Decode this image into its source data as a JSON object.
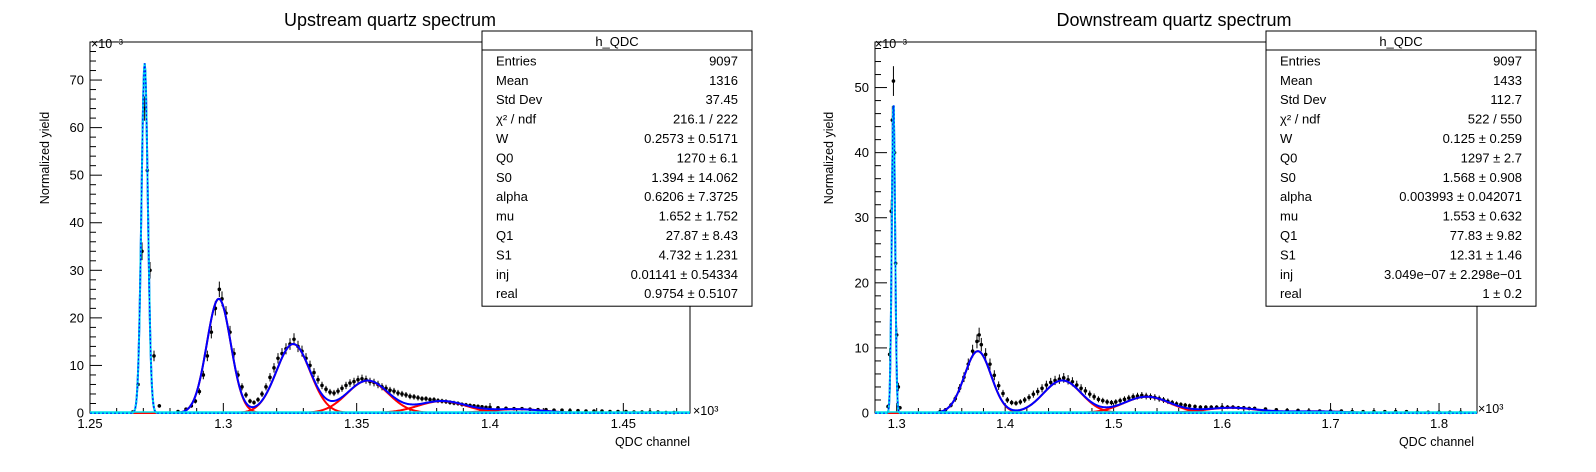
{
  "chart_data": [
    {
      "type": "scatter",
      "title": "Upstream quartz spectrum",
      "xlabel": "QDC channel",
      "ylabel": "Normalized yield",
      "x_multiplier": "×10³",
      "y_multiplier": "×10⁻³",
      "xlim": [
        1.25,
        1.475
      ],
      "ylim": [
        0,
        78
      ],
      "xticks": [
        "1.25",
        "1.3",
        "1.35",
        "1.4",
        "1.45"
      ],
      "yticks": [
        "0",
        "10",
        "20",
        "30",
        "40",
        "50",
        "60",
        "70"
      ],
      "grid": false,
      "legend": "none",
      "colors": {
        "total_fit": "#0000ff",
        "pe_components": "#ff0000",
        "pedestal": "#00e5ee",
        "data": "#000000"
      },
      "stats_box": {
        "title": "h_QDC",
        "rows": [
          {
            "label": "Entries",
            "value": "9097"
          },
          {
            "label": "Mean",
            "value": "1316"
          },
          {
            "label": "Std Dev",
            "value": "37.45"
          },
          {
            "label": "χ² / ndf",
            "value": "216.1 / 222"
          },
          {
            "label": "W",
            "value": "0.2573 ± 0.5171"
          },
          {
            "label": "Q0",
            "value": "1270 ± 6.1"
          },
          {
            "label": "S0",
            "value": "1.394 ± 14.062"
          },
          {
            "label": "alpha",
            "value": "0.6206 ± 7.3725"
          },
          {
            "label": "mu",
            "value": "1.652 ± 1.752"
          },
          {
            "label": "Q1",
            "value": "27.87 ± 8.43"
          },
          {
            "label": "S1",
            "value": "4.732 ± 1.231"
          },
          {
            "label": "inj",
            "value": "0.01141 ± 0.54334"
          },
          {
            "label": "real",
            "value": "0.9754 ± 0.5107"
          }
        ]
      },
      "peaks": [
        {
          "role": "pedestal",
          "center": 1.2705,
          "sigma": 0.0012,
          "height": 73.5
        },
        {
          "role": "pe",
          "center": 1.2983,
          "sigma": 0.0045,
          "height": 24.0
        },
        {
          "role": "pe",
          "center": 1.3262,
          "sigma": 0.0063,
          "height": 14.5
        },
        {
          "role": "pe",
          "center": 1.3541,
          "sigma": 0.0077,
          "height": 6.8
        },
        {
          "role": "pe",
          "center": 1.382,
          "sigma": 0.009,
          "height": 2.5
        },
        {
          "role": "pe",
          "center": 1.4099,
          "sigma": 0.01,
          "height": 0.8
        }
      ],
      "background": {
        "amplitude": 1.2,
        "decay": 0.045
      },
      "data_points": [
        [
          1.266,
          0.2
        ],
        [
          1.268,
          6
        ],
        [
          1.2695,
          34
        ],
        [
          1.2705,
          64
        ],
        [
          1.2715,
          51
        ],
        [
          1.2725,
          30
        ],
        [
          1.274,
          12
        ],
        [
          1.276,
          1.5
        ],
        [
          1.283,
          0.3
        ],
        [
          1.286,
          0.8
        ],
        [
          1.288,
          1.5
        ],
        [
          1.2895,
          2.5
        ],
        [
          1.291,
          4.5
        ],
        [
          1.2925,
          8
        ],
        [
          1.294,
          12
        ],
        [
          1.2955,
          17
        ],
        [
          1.297,
          22
        ],
        [
          1.2985,
          26
        ],
        [
          1.2995,
          24
        ],
        [
          1.301,
          21
        ],
        [
          1.3025,
          17
        ],
        [
          1.304,
          12.5
        ],
        [
          1.3055,
          8
        ],
        [
          1.307,
          5.5
        ],
        [
          1.3085,
          3.8
        ],
        [
          1.31,
          2.5
        ],
        [
          1.3115,
          2.2
        ],
        [
          1.313,
          2.8
        ],
        [
          1.3145,
          4
        ],
        [
          1.316,
          5.5
        ],
        [
          1.3175,
          7.5
        ],
        [
          1.319,
          9.5
        ],
        [
          1.3205,
          11.5
        ],
        [
          1.322,
          12.5
        ],
        [
          1.3235,
          13.5
        ],
        [
          1.325,
          14.5
        ],
        [
          1.3265,
          15.5
        ],
        [
          1.328,
          14
        ],
        [
          1.3295,
          13
        ],
        [
          1.331,
          11.5
        ],
        [
          1.3325,
          10
        ],
        [
          1.334,
          8.5
        ],
        [
          1.3355,
          7
        ],
        [
          1.337,
          5.8
        ],
        [
          1.3385,
          5
        ],
        [
          1.34,
          4.4
        ],
        [
          1.3415,
          4.2
        ],
        [
          1.343,
          4.6
        ],
        [
          1.3445,
          5.2
        ],
        [
          1.346,
          5.8
        ],
        [
          1.3475,
          6.3
        ],
        [
          1.349,
          6.6
        ],
        [
          1.3505,
          7.0
        ],
        [
          1.352,
          7.2
        ],
        [
          1.3535,
          7.0
        ],
        [
          1.355,
          6.6
        ],
        [
          1.3565,
          6.4
        ],
        [
          1.358,
          6.0
        ],
        [
          1.3595,
          5.5
        ],
        [
          1.361,
          5.2
        ],
        [
          1.3625,
          4.8
        ],
        [
          1.364,
          4.6
        ],
        [
          1.3655,
          4.2
        ],
        [
          1.367,
          4.0
        ],
        [
          1.3685,
          3.8
        ],
        [
          1.37,
          3.5
        ],
        [
          1.3715,
          3.4
        ],
        [
          1.373,
          3.2
        ],
        [
          1.3745,
          3.0
        ],
        [
          1.376,
          3.0
        ],
        [
          1.3775,
          2.8
        ],
        [
          1.379,
          2.8
        ],
        [
          1.3805,
          2.6
        ],
        [
          1.382,
          2.5
        ],
        [
          1.3835,
          2.4
        ],
        [
          1.385,
          2.2
        ],
        [
          1.3865,
          2.1
        ],
        [
          1.388,
          2.0
        ],
        [
          1.3895,
          1.8
        ],
        [
          1.391,
          1.7
        ],
        [
          1.3925,
          1.6
        ],
        [
          1.394,
          1.5
        ],
        [
          1.3955,
          1.4
        ],
        [
          1.397,
          1.3
        ],
        [
          1.3985,
          1.2
        ],
        [
          1.4,
          1.2
        ],
        [
          1.403,
          1.1
        ],
        [
          1.406,
          1.0
        ],
        [
          1.409,
          0.9
        ],
        [
          1.412,
          0.9
        ],
        [
          1.415,
          0.8
        ],
        [
          1.418,
          0.7
        ],
        [
          1.421,
          0.7
        ],
        [
          1.424,
          0.6
        ],
        [
          1.427,
          0.6
        ],
        [
          1.43,
          0.5
        ],
        [
          1.433,
          0.5
        ],
        [
          1.436,
          0.4
        ],
        [
          1.439,
          0.4
        ],
        [
          1.442,
          0.4
        ],
        [
          1.445,
          0.3
        ],
        [
          1.448,
          0.3
        ],
        [
          1.451,
          0.3
        ],
        [
          1.454,
          0.2
        ],
        [
          1.457,
          0.2
        ],
        [
          1.46,
          0.2
        ],
        [
          1.463,
          0.2
        ],
        [
          1.466,
          0.1
        ],
        [
          1.469,
          0.1
        ]
      ]
    },
    {
      "type": "scatter",
      "title": "Downstream quartz spectrum",
      "xlabel": "QDC channel",
      "ylabel": "Normalized yield",
      "x_multiplier": "×10³",
      "y_multiplier": "×10⁻³",
      "xlim": [
        1.28,
        1.835
      ],
      "ylim": [
        0,
        57
      ],
      "xticks": [
        "1.3",
        "1.4",
        "1.5",
        "1.6",
        "1.7",
        "1.8"
      ],
      "yticks": [
        "0",
        "10",
        "20",
        "30",
        "40",
        "50"
      ],
      "grid": false,
      "legend": "none",
      "colors": {
        "total_fit": "#0000ff",
        "pe_components": "#ff0000",
        "pedestal": "#00e5ee",
        "data": "#000000"
      },
      "stats_box": {
        "title": "h_QDC",
        "rows": [
          {
            "label": "Entries",
            "value": "9097"
          },
          {
            "label": "Mean",
            "value": "1433"
          },
          {
            "label": "Std Dev",
            "value": "112.7"
          },
          {
            "label": "χ² / ndf",
            "value": "522 / 550"
          },
          {
            "label": "W",
            "value": "0.125 ± 0.259"
          },
          {
            "label": "Q0",
            "value": "1297 ± 2.7"
          },
          {
            "label": "S0",
            "value": "1.568 ± 0.908"
          },
          {
            "label": "alpha",
            "value": "0.003993 ± 0.042071"
          },
          {
            "label": "mu",
            "value": "1.553 ± 0.632"
          },
          {
            "label": "Q1",
            "value": "77.83 ± 9.82"
          },
          {
            "label": "S1",
            "value": "12.31 ± 1.46"
          },
          {
            "label": "inj",
            "value": "3.049e−07 ± 2.298e−01"
          },
          {
            "label": "real",
            "value": "1 ± 0.2"
          }
        ]
      },
      "peaks": [
        {
          "role": "pedestal",
          "center": 1.297,
          "sigma": 0.0015,
          "height": 48.0
        },
        {
          "role": "pe",
          "center": 1.3748,
          "sigma": 0.0123,
          "height": 9.5
        },
        {
          "role": "pe",
          "center": 1.4527,
          "sigma": 0.0174,
          "height": 5.0
        },
        {
          "role": "pe",
          "center": 1.5305,
          "sigma": 0.0213,
          "height": 2.5
        },
        {
          "role": "pe",
          "center": 1.6083,
          "sigma": 0.0246,
          "height": 0.8
        },
        {
          "role": "pe",
          "center": 1.6862,
          "sigma": 0.0275,
          "height": 0.25
        }
      ],
      "background": {
        "amplitude": 0.3,
        "decay": 0.3
      },
      "data_points": [
        [
          1.292,
          1
        ],
        [
          1.2935,
          9
        ],
        [
          1.295,
          31
        ],
        [
          1.296,
          45
        ],
        [
          1.297,
          51
        ],
        [
          1.298,
          40
        ],
        [
          1.299,
          23
        ],
        [
          1.3,
          12
        ],
        [
          1.3015,
          4
        ],
        [
          1.303,
          0.8
        ],
        [
          1.34,
          0.2
        ],
        [
          1.345,
          0.5
        ],
        [
          1.35,
          1.2
        ],
        [
          1.354,
          2.2
        ],
        [
          1.358,
          3.8
        ],
        [
          1.362,
          5.5
        ],
        [
          1.366,
          7.5
        ],
        [
          1.37,
          9.5
        ],
        [
          1.374,
          11
        ],
        [
          1.376,
          12
        ],
        [
          1.378,
          10.5
        ],
        [
          1.382,
          9
        ],
        [
          1.386,
          7.5
        ],
        [
          1.39,
          5.8
        ],
        [
          1.394,
          4.2
        ],
        [
          1.398,
          3.0
        ],
        [
          1.402,
          2.0
        ],
        [
          1.406,
          1.6
        ],
        [
          1.41,
          1.5
        ],
        [
          1.414,
          1.7
        ],
        [
          1.418,
          2.0
        ],
        [
          1.422,
          2.4
        ],
        [
          1.426,
          2.9
        ],
        [
          1.43,
          3.3
        ],
        [
          1.434,
          3.8
        ],
        [
          1.438,
          4.3
        ],
        [
          1.442,
          4.7
        ],
        [
          1.446,
          5.0
        ],
        [
          1.45,
          5.2
        ],
        [
          1.454,
          5.4
        ],
        [
          1.458,
          5.1
        ],
        [
          1.462,
          4.8
        ],
        [
          1.466,
          4.3
        ],
        [
          1.47,
          3.8
        ],
        [
          1.474,
          3.4
        ],
        [
          1.478,
          2.9
        ],
        [
          1.482,
          2.5
        ],
        [
          1.486,
          2.1
        ],
        [
          1.49,
          1.9
        ],
        [
          1.494,
          1.7
        ],
        [
          1.498,
          1.6
        ],
        [
          1.502,
          1.7
        ],
        [
          1.506,
          1.9
        ],
        [
          1.51,
          2.1
        ],
        [
          1.514,
          2.3
        ],
        [
          1.518,
          2.5
        ],
        [
          1.522,
          2.6
        ],
        [
          1.526,
          2.7
        ],
        [
          1.53,
          2.6
        ],
        [
          1.534,
          2.5
        ],
        [
          1.538,
          2.4
        ],
        [
          1.542,
          2.2
        ],
        [
          1.546,
          2.0
        ],
        [
          1.55,
          1.8
        ],
        [
          1.554,
          1.6
        ],
        [
          1.558,
          1.4
        ],
        [
          1.562,
          1.3
        ],
        [
          1.566,
          1.2
        ],
        [
          1.57,
          1.1
        ],
        [
          1.575,
          1.0
        ],
        [
          1.58,
          0.9
        ],
        [
          1.585,
          0.9
        ],
        [
          1.59,
          0.9
        ],
        [
          1.595,
          0.9
        ],
        [
          1.6,
          0.9
        ],
        [
          1.605,
          0.9
        ],
        [
          1.61,
          0.9
        ],
        [
          1.615,
          0.8
        ],
        [
          1.62,
          0.8
        ],
        [
          1.625,
          0.7
        ],
        [
          1.63,
          0.7
        ],
        [
          1.64,
          0.6
        ],
        [
          1.65,
          0.5
        ],
        [
          1.66,
          0.4
        ],
        [
          1.67,
          0.4
        ],
        [
          1.68,
          0.3
        ],
        [
          1.69,
          0.3
        ],
        [
          1.7,
          0.3
        ],
        [
          1.71,
          0.3
        ],
        [
          1.72,
          0.2
        ],
        [
          1.73,
          0.2
        ],
        [
          1.74,
          0.2
        ],
        [
          1.75,
          0.2
        ],
        [
          1.76,
          0.2
        ],
        [
          1.77,
          0.2
        ],
        [
          1.78,
          0.1
        ],
        [
          1.79,
          0.1
        ],
        [
          1.8,
          0.1
        ],
        [
          1.81,
          0.1
        ],
        [
          1.82,
          0.1
        ]
      ]
    }
  ]
}
